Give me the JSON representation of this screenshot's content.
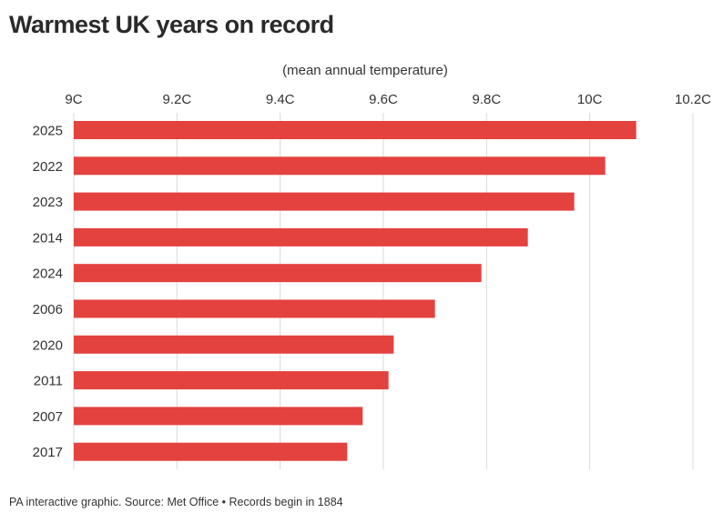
{
  "chart_data": {
    "type": "bar",
    "orientation": "horizontal",
    "title": "Warmest UK years on record",
    "xlabel": "(mean annual temperature)",
    "ylabel": "",
    "categories": [
      "2025",
      "2022",
      "2023",
      "2014",
      "2024",
      "2006",
      "2020",
      "2011",
      "2007",
      "2017"
    ],
    "values": [
      10.09,
      10.03,
      9.97,
      9.88,
      9.79,
      9.7,
      9.62,
      9.61,
      9.56,
      9.53
    ],
    "xlim": [
      9,
      10.2
    ],
    "xticks": [
      9,
      9.2,
      9.4,
      9.6,
      9.8,
      10,
      10.2
    ],
    "xtick_labels": [
      "9C",
      "9.2C",
      "9.4C",
      "9.6C",
      "9.8C",
      "10C",
      "10.2C"
    ],
    "grid": true,
    "bar_color": "#e3423f",
    "grid_color": "#d9d9d9"
  },
  "footer": "PA interactive graphic. Source: Met Office • Records begin in 1884"
}
